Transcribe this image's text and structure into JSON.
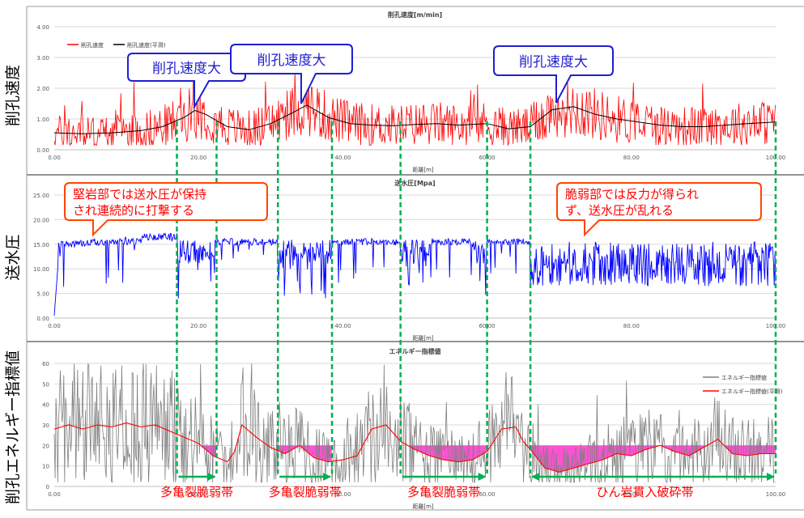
{
  "chart_data": [
    {
      "type": "line",
      "title": "削孔速度[m/min]",
      "side_label": "削孔速度",
      "xlabel": "距離[m]",
      "xlim": [
        0,
        100
      ],
      "ylim": [
        0,
        4
      ],
      "x_ticks": [
        "0.00",
        "20.00",
        "40.00",
        "60.00",
        "80.00",
        "100.00"
      ],
      "y_ticks": [
        "0.00",
        "1.00",
        "2.00",
        "3.00",
        "4.00"
      ],
      "legend": [
        "削孔速度",
        "削孔速度(平滑)"
      ],
      "legend_position": "top-left",
      "grid": true,
      "series": [
        {
          "name": "削孔速度",
          "color": "#ff0000",
          "kind": "raw"
        },
        {
          "name": "削孔速度(平滑)",
          "color": "#000000",
          "kind": "smooth",
          "x": [
            0,
            4,
            8,
            12,
            15,
            18,
            19.5,
            21,
            24,
            27,
            30,
            33,
            35,
            38,
            41,
            44,
            47,
            50,
            53,
            56,
            60,
            63,
            66,
            69,
            72,
            75,
            78,
            81,
            84,
            87,
            90,
            93,
            96,
            100
          ],
          "values": [
            0.55,
            0.52,
            0.55,
            0.62,
            0.75,
            1.05,
            1.28,
            1.15,
            0.75,
            0.65,
            0.85,
            1.2,
            1.45,
            1.05,
            0.85,
            0.8,
            0.78,
            0.82,
            0.85,
            0.8,
            0.85,
            0.68,
            0.75,
            1.3,
            1.4,
            1.15,
            1.0,
            0.9,
            0.8,
            0.75,
            0.75,
            0.8,
            0.85,
            0.9
          ]
        }
      ],
      "callouts": [
        {
          "text": "削孔速度大",
          "x": 18.5
        },
        {
          "text": "削孔速度大",
          "x": 34.5
        },
        {
          "text": "削孔速度大",
          "x": 69.0
        }
      ]
    },
    {
      "type": "line",
      "title": "送水圧[Mpa]",
      "side_label": "送水圧",
      "xlabel": "距離[m]",
      "xlim": [
        0,
        100
      ],
      "ylim": [
        0,
        25
      ],
      "x_ticks": [
        "0.00",
        "20.00",
        "40.00",
        "60.00",
        "80.00",
        "100.00"
      ],
      "y_ticks": [
        "0.00",
        "5.00",
        "10.00",
        "15.00",
        "20.00",
        "25.00"
      ],
      "grid": true,
      "series": [
        {
          "color": "#0000ff",
          "kind": "raw"
        }
      ],
      "callouts": [
        {
          "text_lines": [
            "堅岩部では送水圧が保持",
            "され連続的に打撃する"
          ],
          "x": 10
        },
        {
          "text_lines": [
            "脆弱部では反力が得られ",
            "ず、送水圧が乱れる"
          ],
          "x": 79
        }
      ]
    },
    {
      "type": "area",
      "title": "エネルギー指標値",
      "side_label": "削孔エネルギー指標値",
      "xlabel": "距離[m]",
      "xlim": [
        0,
        100
      ],
      "ylim": [
        0,
        60
      ],
      "x_ticks": [
        "0.00",
        "20.00",
        "40.00",
        "60.00",
        "80.00",
        "100.00"
      ],
      "y_ticks": [
        "0",
        "10",
        "20",
        "30",
        "40",
        "50",
        "60"
      ],
      "legend": [
        "エネルギー指標値",
        "エネルギー指標値(平滑)"
      ],
      "legend_position": "top-right",
      "grid": true,
      "threshold": 20,
      "highlight_color": "#ff33cc",
      "series": [
        {
          "name": "エネルギー指標値",
          "color": "#7f7f7f",
          "kind": "raw"
        },
        {
          "name": "エネルギー指標値(平滑)",
          "color": "#ff0000",
          "kind": "smooth",
          "x": [
            0,
            2,
            4,
            6,
            8,
            10,
            12,
            14,
            16,
            18,
            20,
            22,
            24,
            25,
            26,
            28,
            30,
            32,
            34,
            36,
            38,
            40,
            42,
            44,
            46,
            48,
            50,
            52,
            54,
            56,
            58,
            60,
            62,
            64,
            65,
            66,
            68,
            70,
            72,
            74,
            76,
            78,
            80,
            82,
            84,
            86,
            88,
            90,
            92,
            94,
            96,
            98,
            100
          ],
          "values": [
            28,
            30,
            28,
            30,
            29,
            31,
            29,
            30,
            27,
            24,
            21,
            15,
            12,
            17,
            30,
            24,
            19,
            16,
            20,
            14,
            12,
            13,
            15,
            28,
            30,
            22,
            18,
            15,
            13,
            12,
            13,
            17,
            28,
            29,
            22,
            18,
            9,
            7,
            9,
            11,
            13,
            16,
            15,
            18,
            20,
            17,
            15,
            19,
            23,
            16,
            15,
            16,
            16
          ]
        }
      ],
      "zones": [
        {
          "label": "多亀裂脆弱帯",
          "x_start": 17,
          "x_end": 22.5
        },
        {
          "label": "多亀裂脆弱帯",
          "x_start": 31,
          "x_end": 38.5
        },
        {
          "label": "多亀裂脆弱帯",
          "x_start": 48,
          "x_end": 60
        },
        {
          "label": "ひん岩貫入破砕帯",
          "x_start": 66,
          "x_end": 100
        }
      ]
    }
  ]
}
